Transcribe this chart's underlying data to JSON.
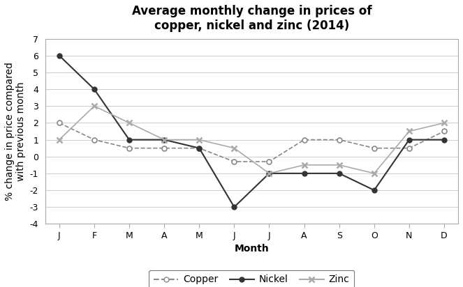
{
  "title": "Average monthly change in prices of\ncopper, nickel and zinc (2014)",
  "xlabel": "Month",
  "ylabel": "% change in price compared\nwith previous month",
  "months": [
    "J",
    "F",
    "M",
    "A",
    "M",
    "J",
    "J",
    "A",
    "S",
    "O",
    "N",
    "D"
  ],
  "copper": [
    2,
    1,
    0.5,
    0.5,
    0.5,
    -0.3,
    -0.3,
    1,
    1,
    0.5,
    0.5,
    1.5
  ],
  "nickel": [
    6,
    4,
    1,
    1,
    0.5,
    -3,
    -1,
    -1,
    -1,
    -2,
    1,
    1
  ],
  "zinc": [
    1,
    3,
    2,
    1,
    1,
    0.5,
    -1,
    -0.5,
    -0.5,
    -1,
    1.5,
    2
  ],
  "copper_color": "#888888",
  "nickel_color": "#333333",
  "zinc_color": "#aaaaaa",
  "background_color": "#ffffff",
  "grid_color": "#cccccc",
  "ylim": [
    -4,
    7
  ],
  "yticks": [
    -4,
    -3,
    -2,
    -1,
    0,
    1,
    2,
    3,
    4,
    5,
    6,
    7
  ],
  "title_fontsize": 12,
  "label_fontsize": 10,
  "tick_fontsize": 9,
  "legend_fontsize": 10
}
